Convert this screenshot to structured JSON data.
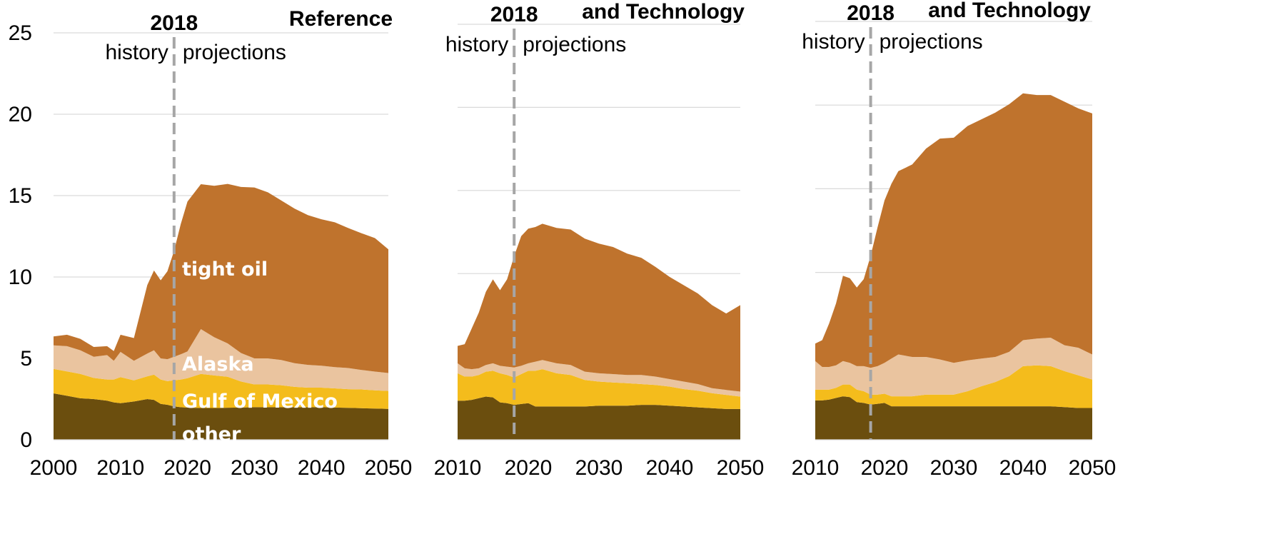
{
  "chart_data": [
    {
      "type": "area",
      "title": "Reference",
      "divider_label": "2018",
      "history_label": "history",
      "projections_label": "projections",
      "ylim": [
        0,
        25
      ],
      "yticks": [
        "0",
        "5",
        "10",
        "15",
        "20",
        "25"
      ],
      "xlim": [
        2000,
        2050
      ],
      "xticks": [
        "2000",
        "2010",
        "2020",
        "2030",
        "2040",
        "2050"
      ],
      "x": [
        2000,
        2002,
        2004,
        2006,
        2008,
        2009,
        2010,
        2012,
        2014,
        2015,
        2016,
        2017,
        2018,
        2019,
        2020,
        2022,
        2024,
        2026,
        2028,
        2030,
        2032,
        2034,
        2036,
        2038,
        2040,
        2042,
        2044,
        2046,
        2048,
        2050
      ],
      "series": [
        {
          "name": "other",
          "color": "#6b4e0e",
          "values": [
            2.85,
            2.7,
            2.55,
            2.5,
            2.4,
            2.3,
            2.25,
            2.35,
            2.5,
            2.45,
            2.2,
            2.15,
            2.05,
            2.0,
            1.98,
            1.95,
            1.95,
            1.97,
            1.98,
            2.0,
            2.0,
            2.0,
            2.0,
            2.0,
            2.0,
            1.98,
            1.96,
            1.94,
            1.92,
            1.9
          ]
        },
        {
          "name": "Gulf of Mexico",
          "color": "#f4bc1c",
          "values": [
            1.5,
            1.5,
            1.5,
            1.3,
            1.3,
            1.4,
            1.6,
            1.3,
            1.4,
            1.55,
            1.5,
            1.45,
            1.6,
            1.7,
            1.8,
            2.1,
            2.0,
            1.9,
            1.6,
            1.4,
            1.4,
            1.35,
            1.25,
            1.2,
            1.2,
            1.18,
            1.15,
            1.15,
            1.12,
            1.1
          ]
        },
        {
          "name": "Alaska",
          "color": "#eac49f",
          "values": [
            1.45,
            1.55,
            1.45,
            1.3,
            1.5,
            1.15,
            1.55,
            1.2,
            1.4,
            1.5,
            1.3,
            1.35,
            1.45,
            1.55,
            1.65,
            2.75,
            2.35,
            2.05,
            1.75,
            1.6,
            1.6,
            1.55,
            1.45,
            1.4,
            1.35,
            1.3,
            1.3,
            1.2,
            1.15,
            1.1
          ]
        },
        {
          "name": "tight oil",
          "color": "#bf732d",
          "values": [
            0.55,
            0.7,
            0.7,
            0.6,
            0.55,
            0.6,
            1.05,
            1.4,
            4.2,
            4.9,
            4.8,
            5.4,
            6.5,
            8.0,
            9.2,
            8.9,
            9.3,
            9.8,
            10.2,
            10.5,
            10.2,
            9.8,
            9.5,
            9.2,
            9.0,
            8.9,
            8.6,
            8.4,
            8.2,
            7.6
          ]
        }
      ]
    },
    {
      "type": "area",
      "title": "and Technology",
      "divider_label": "2018",
      "history_label": "history",
      "projections_label": "projections",
      "ylim": [
        0,
        25
      ],
      "xlim": [
        2010,
        2050
      ],
      "xticks": [
        "2010",
        "2020",
        "2030",
        "2040",
        "2050"
      ],
      "x": [
        2010,
        2011,
        2012,
        2013,
        2014,
        2015,
        2016,
        2017,
        2018,
        2019,
        2020,
        2021,
        2022,
        2024,
        2026,
        2028,
        2030,
        2032,
        2034,
        2036,
        2038,
        2040,
        2042,
        2044,
        2046,
        2048,
        2050
      ],
      "series": [
        {
          "name": "other",
          "color": "#6b4e0e",
          "values": [
            2.35,
            2.35,
            2.4,
            2.5,
            2.6,
            2.55,
            2.25,
            2.2,
            2.1,
            2.15,
            2.2,
            2.0,
            2.0,
            2.0,
            2.0,
            2.0,
            2.05,
            2.05,
            2.05,
            2.1,
            2.1,
            2.05,
            2.0,
            1.95,
            1.9,
            1.85,
            1.85
          ]
        },
        {
          "name": "Gulf of Mexico",
          "color": "#f4bc1c",
          "values": [
            1.65,
            1.45,
            1.4,
            1.4,
            1.5,
            1.6,
            1.75,
            1.7,
            1.65,
            1.8,
            1.95,
            2.15,
            2.25,
            2.0,
            1.9,
            1.6,
            1.45,
            1.4,
            1.35,
            1.25,
            1.2,
            1.15,
            1.05,
            1.0,
            0.9,
            0.85,
            0.75
          ]
        },
        {
          "name": "Alaska",
          "color": "#eac49f",
          "values": [
            0.6,
            0.5,
            0.45,
            0.4,
            0.4,
            0.45,
            0.45,
            0.5,
            0.6,
            0.5,
            0.45,
            0.55,
            0.55,
            0.6,
            0.6,
            0.5,
            0.5,
            0.5,
            0.5,
            0.55,
            0.5,
            0.45,
            0.45,
            0.4,
            0.3,
            0.3,
            0.3
          ]
        },
        {
          "name": "tight oil",
          "color": "#bf732d",
          "values": [
            1.05,
            1.45,
            2.45,
            3.35,
            4.4,
            5.05,
            4.55,
            5.25,
            6.7,
            7.8,
            8.1,
            8.1,
            8.2,
            8.15,
            8.15,
            8.0,
            7.8,
            7.65,
            7.3,
            7.05,
            6.6,
            6.15,
            5.8,
            5.45,
            5.0,
            4.6,
            5.2
          ]
        }
      ]
    },
    {
      "type": "area",
      "title": "and Technology",
      "divider_label": "2018",
      "history_label": "history",
      "projections_label": "projections",
      "ylim": [
        0,
        25
      ],
      "xlim": [
        2010,
        2050
      ],
      "xticks": [
        "2010",
        "2020",
        "2030",
        "2040",
        "2050"
      ],
      "x": [
        2010,
        2011,
        2012,
        2013,
        2014,
        2015,
        2016,
        2017,
        2018,
        2019,
        2020,
        2021,
        2022,
        2024,
        2026,
        2028,
        2030,
        2032,
        2034,
        2036,
        2038,
        2040,
        2042,
        2044,
        2046,
        2048,
        2050
      ],
      "series": [
        {
          "name": "other",
          "color": "#6b4e0e",
          "values": [
            2.35,
            2.35,
            2.4,
            2.5,
            2.6,
            2.55,
            2.25,
            2.2,
            2.1,
            2.15,
            2.2,
            2.0,
            2.0,
            2.0,
            2.0,
            2.0,
            2.0,
            2.0,
            2.0,
            2.0,
            2.0,
            2.0,
            2.0,
            2.0,
            1.95,
            1.9,
            1.9
          ]
        },
        {
          "name": "Gulf of Mexico",
          "color": "#f4bc1c",
          "values": [
            0.65,
            0.65,
            0.6,
            0.6,
            0.7,
            0.75,
            0.75,
            0.7,
            0.6,
            0.55,
            0.55,
            0.6,
            0.6,
            0.6,
            0.7,
            0.7,
            0.7,
            0.9,
            1.2,
            1.45,
            1.8,
            2.4,
            2.45,
            2.4,
            2.15,
            1.95,
            1.7
          ]
        },
        {
          "name": "Alaska",
          "color": "#eac49f",
          "values": [
            1.7,
            1.35,
            1.35,
            1.35,
            1.4,
            1.3,
            1.4,
            1.5,
            1.6,
            1.7,
            1.85,
            2.25,
            2.5,
            2.35,
            2.25,
            2.1,
            1.9,
            1.85,
            1.65,
            1.5,
            1.45,
            1.55,
            1.6,
            1.7,
            1.55,
            1.65,
            1.5
          ]
        },
        {
          "name": "tight oil",
          "color": "#bf732d",
          "values": [
            1.05,
            1.6,
            2.6,
            3.7,
            5.1,
            5.05,
            4.7,
            5.2,
            6.7,
            8.3,
            9.7,
            10.45,
            10.95,
            11.5,
            12.45,
            13.2,
            13.45,
            14.0,
            14.3,
            14.6,
            14.8,
            14.75,
            14.55,
            14.5,
            14.55,
            14.3,
            14.4
          ]
        }
      ]
    }
  ],
  "annotations": {
    "tight_oil": "tight oil",
    "alaska": "Alaska",
    "gulf": "Gulf of Mexico",
    "other": "other"
  }
}
